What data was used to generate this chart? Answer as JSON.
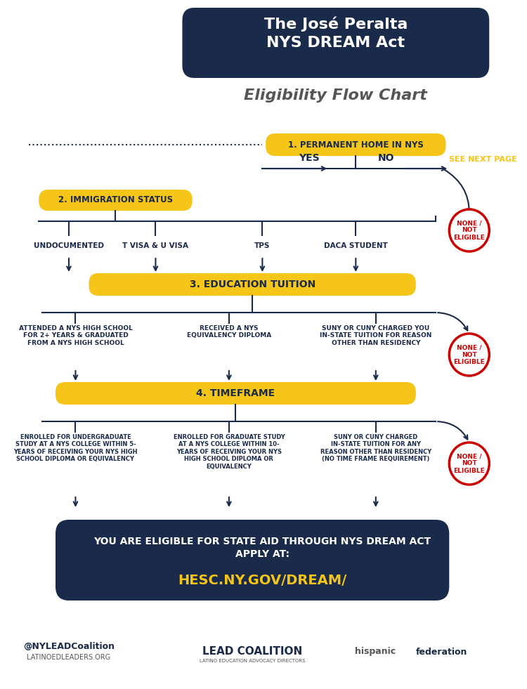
{
  "bg_color": "#ffffff",
  "title_box_color": "#1a2a4a",
  "title_text": "The José Peralta\nNYS DREAM Act",
  "subtitle_text": "Eligibility Flow Chart",
  "yellow": "#f5c518",
  "dark_blue": "#1a2a4a",
  "red": "#cc0000",
  "step1_label": "1. PERMANENT HOME IN NYS",
  "step2_label": "2. IMMIGRATION STATUS",
  "step3_label": "3. EDUCATION TUITION",
  "step4_label": "4. TIMEFRAME",
  "yes_text": "YES",
  "no_text": "NO",
  "see_next": "SEE NEXT PAGE",
  "immigration_options": [
    "UNDOCUMENTED",
    "T VISA & U VISA",
    "TPS",
    "DACA STUDENT"
  ],
  "education_options": [
    "ATTENDED A NYS HIGH SCHOOL\nFOR 2+ YEARS & GRADUATED\nFROM A NYS HIGH SCHOOL",
    "RECEIVED A NYS\nEQUIVALENCY DIPLOMA",
    "SUNY OR CUNY CHARGED YOU\nIN-STATE TUITION FOR REASON\nOTHER THAN RESIDENCY"
  ],
  "timeframe_options": [
    "ENROLLED FOR UNDERGRADUATE\nSTUDY AT A NYS COLLEGE WITHIN 5-\nYEARS OF RECEIVING YOUR NYS HIGH\nSCHOOL DIPLOMA OR EQUIVALENCY",
    "ENROLLED FOR GRADUATE STUDY\nAT A NYS COLLEGE WITHIN 10-\nYEARS OF RECEIVING YOUR NYS\nHIGH SCHOOL DIPLOMA OR\nEQUIVALENCY",
    "SUNY OR CUNY CHARGED\nIN-STATE TUITION FOR ANY\nREASON OTHER THAN RESIDENCY\n(NO TIME FRAME REQUIREMENT)"
  ],
  "none_not_eligible": "NONE /\nNOT\nELIGIBLE",
  "eligible_text": "YOU ARE ELIGIBLE FOR STATE AID THROUGH NYS DREAM ACT\nAPPLY AT:",
  "eligible_url": "HESC.NY.GOV/DREAM/",
  "footer_twitter": "@NYLEADCoalition",
  "footer_website": "LATINOEDLEADERS.ORG"
}
